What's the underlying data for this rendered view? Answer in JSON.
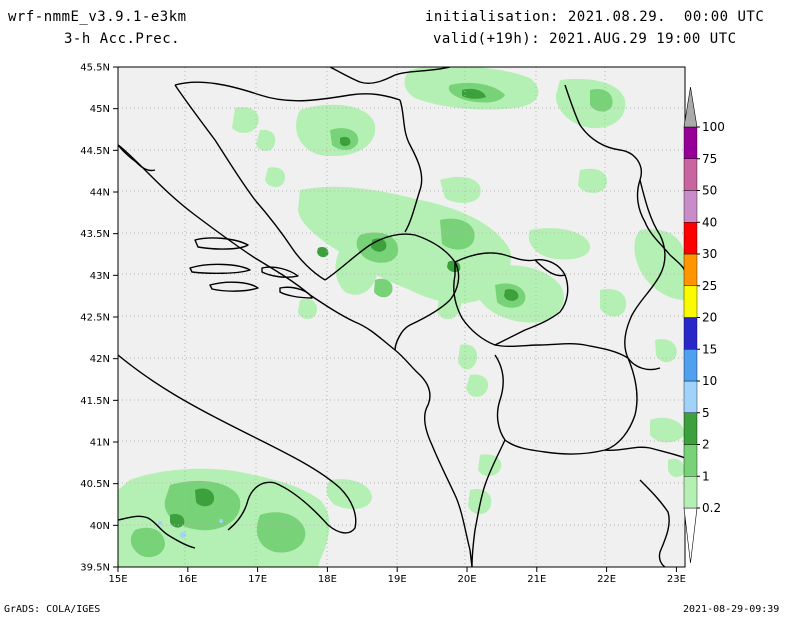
{
  "header": {
    "model": "wrf-nmmE_v3.9.1-e3km",
    "field": "3-h Acc.Prec.",
    "init": "initialisation: 2021.08.29.  00:00 UTC",
    "valid": "valid(+19h): 2021.AUG.29 19:00 UTC"
  },
  "footer": {
    "credit": "GrADS: COLA/IGES",
    "timestamp": "2021-08-29-09:39"
  },
  "axes": {
    "lat_labels": [
      "45.5N",
      "45N",
      "44.5N",
      "44N",
      "43.5N",
      "43N",
      "42.5N",
      "42N",
      "41.5N",
      "41N",
      "40.5N",
      "40N",
      "39.5N"
    ],
    "lon_labels": [
      "15E",
      "16E",
      "17E",
      "18E",
      "19E",
      "20E",
      "21E",
      "22E",
      "23E"
    ]
  },
  "legend": {
    "levels": [
      "0.2",
      "1",
      "2",
      "5",
      "10",
      "15",
      "20",
      "25",
      "30",
      "40",
      "50",
      "75",
      "100"
    ],
    "colors": [
      "#b4f0b4",
      "#78d278",
      "#3ca03c",
      "#a0d2fa",
      "#50a0f0",
      "#2828c8",
      "#fafa00",
      "#ff9600",
      "#ff0000",
      "#c88cc8",
      "#c864a0",
      "#960096",
      "#aaaaaa"
    ]
  }
}
